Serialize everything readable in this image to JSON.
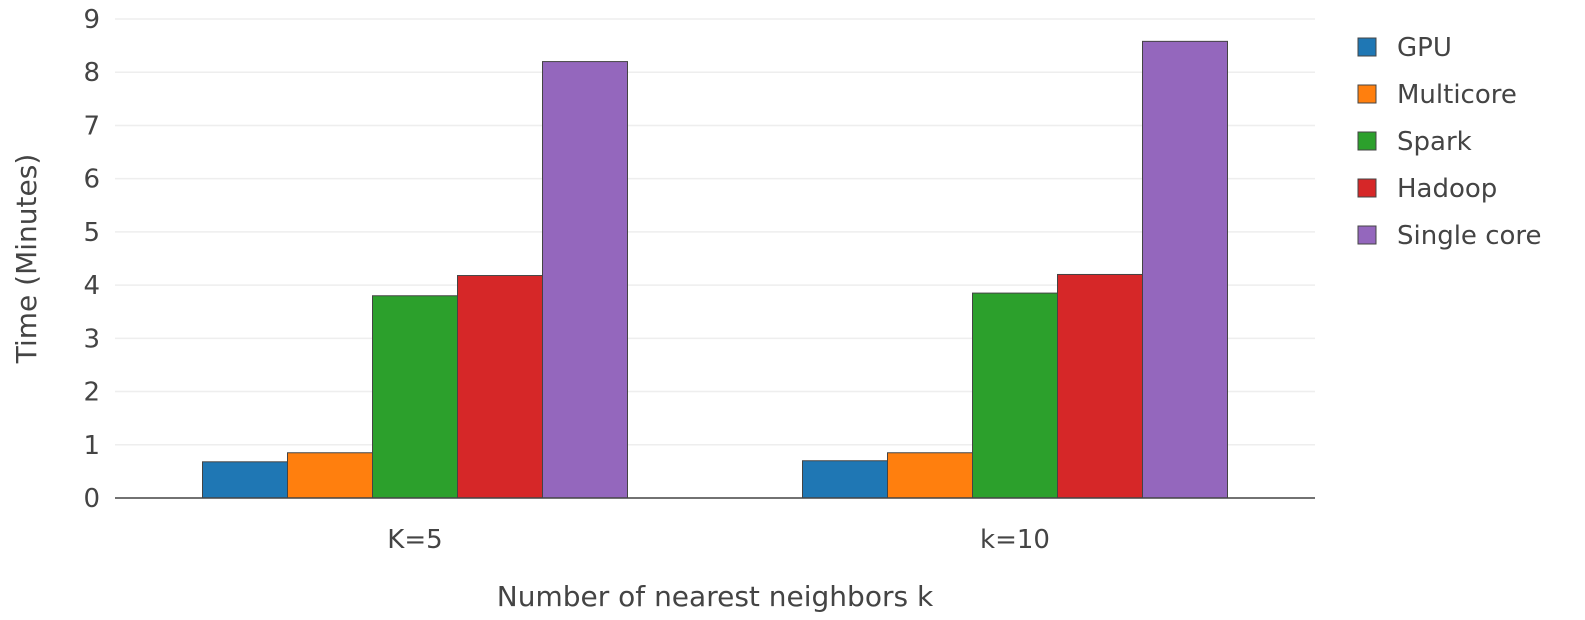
{
  "chart_data": {
    "type": "bar",
    "title": "",
    "xlabel": "Number of nearest neighbors k",
    "ylabel": "Time (Minutes)",
    "ylim": [
      0,
      9
    ],
    "yticks": [
      0,
      1,
      2,
      3,
      4,
      5,
      6,
      7,
      8,
      9
    ],
    "grid": true,
    "legend_position": "right",
    "categories": [
      "K=5",
      "k=10"
    ],
    "series": [
      {
        "name": "GPU",
        "color": "#1f77b4",
        "values": [
          0.68,
          0.7
        ]
      },
      {
        "name": "Multicore",
        "color": "#ff7f0e",
        "values": [
          0.85,
          0.85
        ]
      },
      {
        "name": "Spark",
        "color": "#2ca02c",
        "values": [
          3.8,
          3.85
        ]
      },
      {
        "name": "Hadoop",
        "color": "#d62728",
        "values": [
          4.18,
          4.2
        ]
      },
      {
        "name": "Single core",
        "color": "#9467bd",
        "values": [
          8.2,
          8.58
        ]
      }
    ]
  }
}
